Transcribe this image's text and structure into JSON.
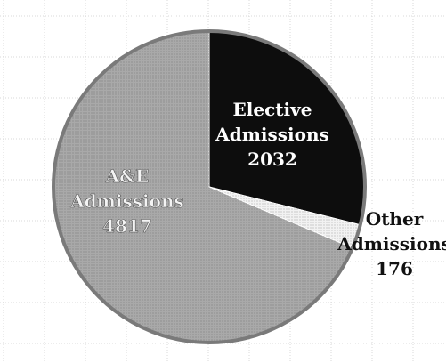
{
  "chart_data": {
    "type": "pie",
    "title": "",
    "slices": [
      {
        "label_lines": [
          "Elective",
          "Admissions",
          "2032"
        ],
        "name": "Elective Admissions",
        "value": 2032,
        "color": "#0d0d0d",
        "label_color": "#ffffff"
      },
      {
        "label_lines": [
          "Other",
          "Admissions",
          "176"
        ],
        "name": "Other Admissions",
        "value": 176,
        "color": "#f2f2f2",
        "label_color": "#111111"
      },
      {
        "label_lines": [
          "A&E",
          "Admissions",
          "4817"
        ],
        "name": "A&E Admissions",
        "value": 4817,
        "color": "#a9a9a9",
        "label_color": "#f4f4f4"
      }
    ],
    "start_angle_deg": 0,
    "direction": "clockwise",
    "background_grid": true
  }
}
